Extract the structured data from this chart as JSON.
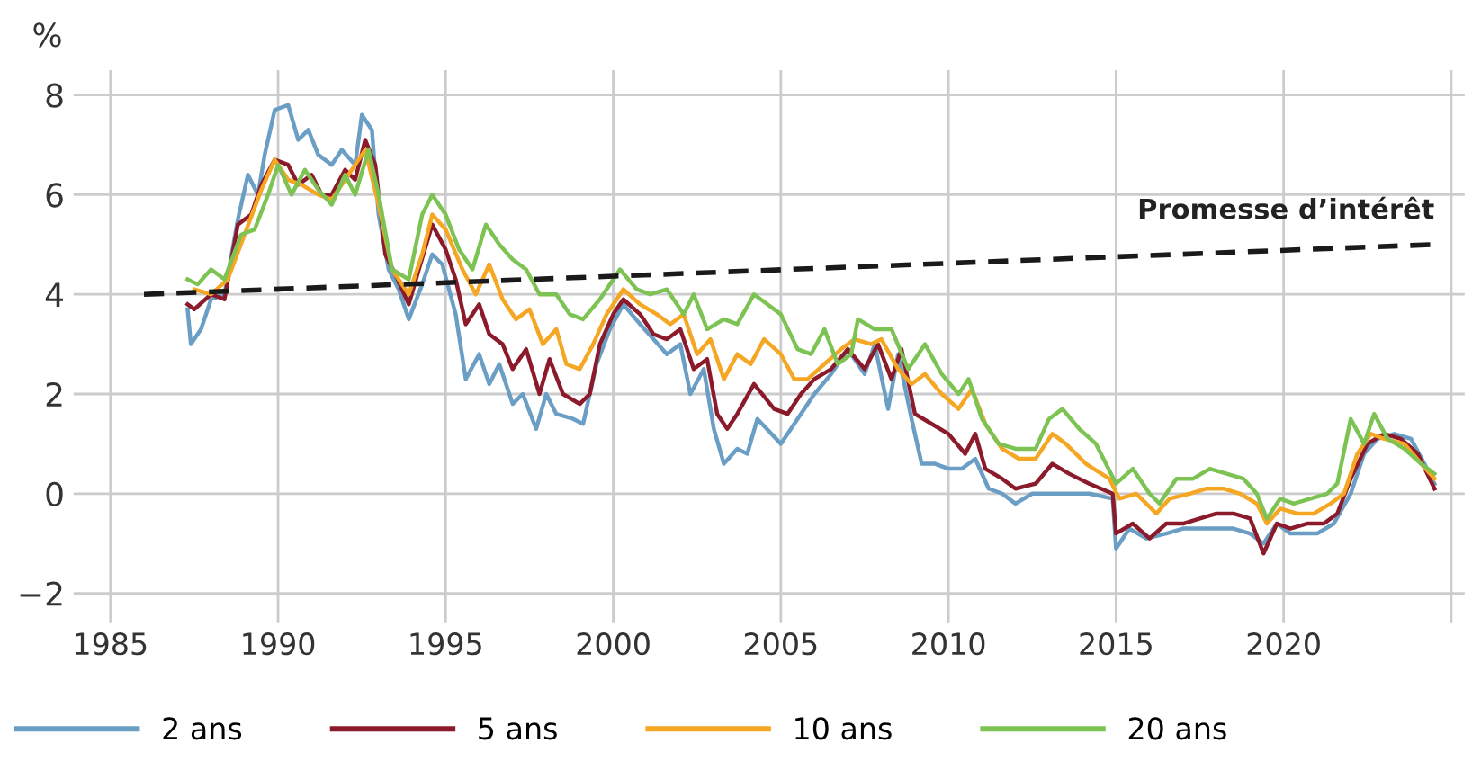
{
  "chart_data": {
    "type": "line",
    "ylabel": "%",
    "xlim": [
      1983.9,
      2025.4
    ],
    "ylim": [
      -2.6,
      8.5
    ],
    "xticks": [
      1985,
      1990,
      1995,
      2000,
      2005,
      2010,
      2015,
      2020,
      {
        "value": 2025,
        "label": null
      }
    ],
    "yticks": [
      {
        "value": -2,
        "label": "−2"
      },
      0,
      2,
      4,
      6,
      8
    ],
    "grid": true,
    "legend": "bottom",
    "line_style": "solid",
    "marker": "none",
    "series": [
      {
        "name": "2 ans",
        "color": "#6a9ec5",
        "x": [
          1987.3,
          1987.4,
          1987.7,
          1988.0,
          1988.4,
          1988.8,
          1989.1,
          1989.4,
          1989.6,
          1989.9,
          1990.3,
          1990.6,
          1990.9,
          1991.2,
          1991.6,
          1991.9,
          1992.3,
          1992.5,
          1992.8,
          1993.0,
          1993.3,
          1993.6,
          1993.9,
          1994.3,
          1994.6,
          1994.9,
          1995.3,
          1995.6,
          1996.0,
          1996.3,
          1996.6,
          1997.0,
          1997.3,
          1997.7,
          1998.0,
          1998.3,
          1998.8,
          1999.1,
          1999.5,
          1999.9,
          2000.3,
          2000.8,
          2001.2,
          2001.6,
          2002.0,
          2002.3,
          2002.7,
          2003.0,
          2003.3,
          2003.7,
          2004.0,
          2004.3,
          2005.0,
          2005.5,
          2006.0,
          2006.5,
          2007.0,
          2007.5,
          2007.8,
          2008.2,
          2008.5,
          2008.9,
          2009.2,
          2009.6,
          2010.0,
          2010.4,
          2010.8,
          2011.2,
          2011.6,
          2012.0,
          2012.5,
          2013.0,
          2013.5,
          2014.2,
          2014.9,
          2015.0,
          2015.4,
          2015.9,
          2016.5,
          2017.0,
          2017.5,
          2018.0,
          2018.5,
          2019.0,
          2019.4,
          2019.8,
          2020.2,
          2020.6,
          2021.0,
          2021.5,
          2022.0,
          2022.4,
          2022.8,
          2023.3,
          2023.8,
          2024.2,
          2024.5
        ],
        "values": [
          3.7,
          3.0,
          3.3,
          3.9,
          4.0,
          5.5,
          6.4,
          6.0,
          6.8,
          7.7,
          7.8,
          7.1,
          7.3,
          6.8,
          6.6,
          6.9,
          6.6,
          7.6,
          7.3,
          5.6,
          4.5,
          4.1,
          3.5,
          4.2,
          4.8,
          4.6,
          3.6,
          2.3,
          2.8,
          2.2,
          2.6,
          1.8,
          2.0,
          1.3,
          2.0,
          1.6,
          1.5,
          1.4,
          2.6,
          3.3,
          3.8,
          3.4,
          3.1,
          2.8,
          3.0,
          2.0,
          2.5,
          1.3,
          0.6,
          0.9,
          0.8,
          1.5,
          1.0,
          1.5,
          2.0,
          2.4,
          2.9,
          2.4,
          3.0,
          1.7,
          2.8,
          1.5,
          0.6,
          0.6,
          0.5,
          0.5,
          0.7,
          0.1,
          0.0,
          -0.2,
          0.0,
          0.0,
          0.0,
          0.0,
          -0.1,
          -1.1,
          -0.7,
          -0.9,
          -0.8,
          -0.7,
          -0.7,
          -0.7,
          -0.7,
          -0.8,
          -1.0,
          -0.6,
          -0.8,
          -0.8,
          -0.8,
          -0.6,
          0.0,
          0.8,
          1.1,
          1.2,
          1.1,
          0.6,
          0.2
        ]
      },
      {
        "name": "5 ans",
        "color": "#8b1a2b",
        "x": [
          1987.3,
          1987.5,
          1988.0,
          1988.4,
          1988.8,
          1989.2,
          1989.5,
          1989.9,
          1990.3,
          1990.6,
          1991.0,
          1991.3,
          1991.6,
          1992.0,
          1992.3,
          1992.6,
          1992.9,
          1993.2,
          1993.5,
          1993.9,
          1994.2,
          1994.6,
          1995.0,
          1995.3,
          1995.6,
          1996.0,
          1996.3,
          1996.7,
          1997.0,
          1997.4,
          1997.8,
          1998.1,
          1998.5,
          1999.0,
          1999.3,
          1999.6,
          2000.0,
          2000.3,
          2000.8,
          2001.2,
          2001.6,
          2002.0,
          2002.4,
          2002.8,
          2003.1,
          2003.4,
          2003.7,
          2004.2,
          2004.8,
          2005.2,
          2005.6,
          2006.0,
          2006.5,
          2007.0,
          2007.5,
          2007.9,
          2008.3,
          2008.6,
          2009.0,
          2009.5,
          2010.0,
          2010.5,
          2010.8,
          2011.1,
          2011.6,
          2012.0,
          2012.6,
          2013.1,
          2013.6,
          2014.2,
          2014.9,
          2015.0,
          2015.5,
          2016.0,
          2016.5,
          2017.0,
          2017.5,
          2018.0,
          2018.5,
          2019.0,
          2019.4,
          2019.8,
          2020.2,
          2020.7,
          2021.2,
          2021.6,
          2022.0,
          2022.5,
          2023.0,
          2023.5,
          2024.0,
          2024.5
        ],
        "values": [
          3.8,
          3.7,
          4.0,
          3.9,
          5.4,
          5.6,
          6.2,
          6.7,
          6.6,
          6.2,
          6.4,
          6.0,
          6.0,
          6.5,
          6.3,
          7.1,
          6.6,
          4.8,
          4.4,
          3.8,
          4.5,
          5.4,
          4.9,
          4.3,
          3.4,
          3.8,
          3.2,
          3.0,
          2.5,
          2.9,
          2.0,
          2.7,
          2.0,
          1.8,
          2.0,
          3.0,
          3.6,
          3.9,
          3.6,
          3.2,
          3.1,
          3.3,
          2.5,
          2.7,
          1.6,
          1.3,
          1.6,
          2.2,
          1.7,
          1.6,
          2.0,
          2.3,
          2.5,
          2.9,
          2.5,
          3.0,
          2.3,
          2.9,
          1.6,
          1.4,
          1.2,
          0.8,
          1.2,
          0.5,
          0.3,
          0.1,
          0.2,
          0.6,
          0.4,
          0.2,
          0.0,
          -0.8,
          -0.6,
          -0.9,
          -0.6,
          -0.6,
          -0.5,
          -0.4,
          -0.4,
          -0.5,
          -1.2,
          -0.6,
          -0.7,
          -0.6,
          -0.6,
          -0.4,
          0.3,
          1.0,
          1.2,
          1.1,
          0.8,
          0.1
        ]
      },
      {
        "name": "10 ans",
        "color": "#f5a623",
        "x": [
          1987.5,
          1988.0,
          1988.5,
          1989.0,
          1989.5,
          1989.9,
          1990.3,
          1990.7,
          1991.2,
          1991.6,
          1992.0,
          1992.6,
          1993.0,
          1993.4,
          1993.9,
          1994.3,
          1994.6,
          1995.0,
          1995.5,
          1995.9,
          1996.3,
          1996.7,
          1997.1,
          1997.5,
          1997.9,
          1998.3,
          1998.6,
          1999.0,
          1999.4,
          1999.8,
          2000.3,
          2000.8,
          2001.3,
          2001.7,
          2002.1,
          2002.5,
          2002.9,
          2003.3,
          2003.7,
          2004.1,
          2004.5,
          2005.0,
          2005.4,
          2005.8,
          2006.3,
          2006.8,
          2007.2,
          2007.7,
          2008.0,
          2008.5,
          2008.9,
          2009.3,
          2009.8,
          2010.3,
          2010.7,
          2011.1,
          2011.6,
          2012.1,
          2012.6,
          2013.1,
          2013.5,
          2014.1,
          2014.8,
          2015.1,
          2015.6,
          2016.2,
          2016.6,
          2017.2,
          2017.7,
          2018.2,
          2018.7,
          2019.2,
          2019.5,
          2019.9,
          2020.4,
          2020.9,
          2021.4,
          2021.8,
          2022.2,
          2022.6,
          2023.0,
          2023.6,
          2024.1,
          2024.5
        ],
        "values": [
          4.1,
          4.0,
          4.3,
          5.2,
          6.1,
          6.7,
          6.3,
          6.2,
          6.0,
          5.9,
          6.3,
          6.9,
          5.8,
          4.5,
          4.0,
          4.8,
          5.6,
          5.3,
          4.5,
          4.0,
          4.6,
          3.9,
          3.5,
          3.7,
          3.0,
          3.3,
          2.6,
          2.5,
          3.0,
          3.6,
          4.1,
          3.8,
          3.6,
          3.4,
          3.6,
          2.8,
          3.1,
          2.3,
          2.8,
          2.6,
          3.1,
          2.8,
          2.3,
          2.3,
          2.6,
          2.9,
          3.1,
          3.0,
          3.1,
          2.5,
          2.2,
          2.4,
          2.0,
          1.7,
          2.1,
          1.4,
          0.9,
          0.7,
          0.7,
          1.2,
          1.0,
          0.6,
          0.3,
          -0.1,
          0.0,
          -0.4,
          -0.1,
          0.0,
          0.1,
          0.1,
          0.0,
          -0.2,
          -0.6,
          -0.3,
          -0.4,
          -0.4,
          -0.2,
          0.0,
          0.8,
          1.2,
          1.1,
          1.0,
          0.6,
          0.3
        ]
      },
      {
        "name": "20 ans",
        "color": "#7dc353",
        "x": [
          1987.3,
          1987.6,
          1988.0,
          1988.4,
          1988.9,
          1989.3,
          1989.7,
          1990.0,
          1990.4,
          1990.8,
          1991.2,
          1991.6,
          1992.0,
          1992.3,
          1992.7,
          1993.0,
          1993.4,
          1993.9,
          1994.3,
          1994.6,
          1995.0,
          1995.4,
          1995.8,
          1996.2,
          1996.6,
          1997.0,
          1997.4,
          1997.8,
          1998.3,
          1998.7,
          1999.1,
          1999.6,
          2000.2,
          2000.7,
          2001.1,
          2001.6,
          2002.1,
          2002.4,
          2002.8,
          2003.3,
          2003.7,
          2004.2,
          2004.6,
          2005.0,
          2005.5,
          2005.9,
          2006.3,
          2006.7,
          2007.1,
          2007.3,
          2007.8,
          2008.3,
          2008.8,
          2009.3,
          2009.8,
          2010.3,
          2010.6,
          2011.0,
          2011.5,
          2012.0,
          2012.6,
          2013.0,
          2013.4,
          2013.9,
          2014.4,
          2015.0,
          2015.5,
          2016.0,
          2016.3,
          2016.8,
          2017.3,
          2017.8,
          2018.3,
          2018.8,
          2019.2,
          2019.5,
          2019.9,
          2020.3,
          2020.8,
          2021.3,
          2021.6,
          2022.0,
          2022.4,
          2022.7,
          2023.1,
          2023.6,
          2024.1,
          2024.5
        ],
        "values": [
          4.3,
          4.2,
          4.5,
          4.3,
          5.2,
          5.3,
          6.0,
          6.6,
          6.0,
          6.5,
          6.1,
          5.8,
          6.4,
          6.0,
          6.9,
          6.0,
          4.5,
          4.3,
          5.6,
          6.0,
          5.6,
          4.9,
          4.5,
          5.4,
          5.0,
          4.7,
          4.5,
          4.0,
          4.0,
          3.6,
          3.5,
          3.9,
          4.5,
          4.1,
          4.0,
          4.1,
          3.6,
          4.0,
          3.3,
          3.5,
          3.4,
          4.0,
          3.8,
          3.6,
          2.9,
          2.8,
          3.3,
          2.6,
          2.8,
          3.5,
          3.3,
          3.3,
          2.5,
          3.0,
          2.4,
          2.0,
          2.3,
          1.5,
          1.0,
          0.9,
          0.9,
          1.5,
          1.7,
          1.3,
          1.0,
          0.2,
          0.5,
          0.0,
          -0.2,
          0.3,
          0.3,
          0.5,
          0.4,
          0.3,
          0.0,
          -0.5,
          -0.1,
          -0.2,
          -0.1,
          0.0,
          0.2,
          1.5,
          1.0,
          1.6,
          1.1,
          0.9,
          0.6,
          0.4
        ]
      },
      {
        "type": "line",
        "name": "Promesse d’intérêt",
        "color": "#1a1a1a",
        "line_style": "dashed",
        "x": [
          1986.0,
          2024.5
        ],
        "values": [
          4.0,
          5.0
        ]
      }
    ]
  }
}
